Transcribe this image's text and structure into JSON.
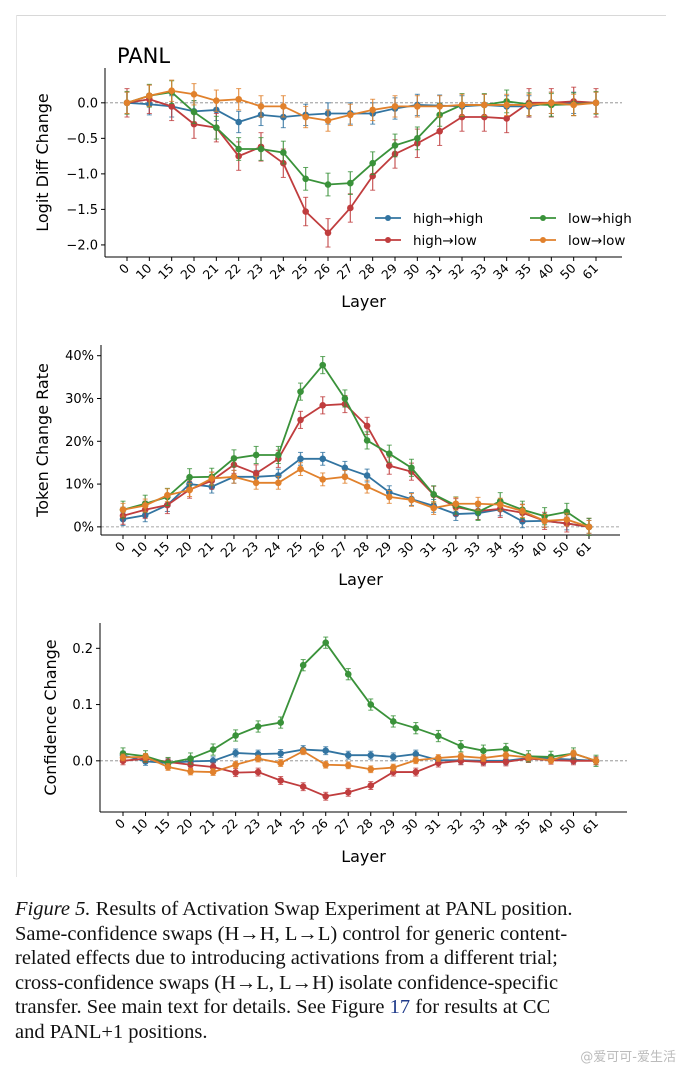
{
  "chart_data": [
    {
      "type": "line",
      "title": "PANL",
      "xlabel": "Layer",
      "ylabel": "Logit Diff Change",
      "categories": [
        "0",
        "10",
        "15",
        "20",
        "21",
        "22",
        "23",
        "24",
        "25",
        "26",
        "27",
        "28",
        "29",
        "30",
        "31",
        "32",
        "33",
        "34",
        "35",
        "40",
        "50",
        "61"
      ],
      "ylim": [
        -2.17,
        0.49
      ],
      "yticks": [
        0.0,
        -0.5,
        -1.0,
        -1.5,
        -2.0
      ],
      "ytick_labels": [
        "0.0",
        "−0.5",
        "−1.0",
        "−1.5",
        "−2.0"
      ],
      "reference_line": 0,
      "grid": false,
      "legend": {
        "placement": "lower-right",
        "columns": 2
      },
      "series": [
        {
          "name": "high→high",
          "color": "#3274a1",
          "err": 0.15,
          "values": [
            0,
            -0.02,
            -0.05,
            -0.12,
            -0.1,
            -0.27,
            -0.17,
            -0.2,
            -0.17,
            -0.15,
            -0.15,
            -0.15,
            -0.08,
            -0.03,
            -0.04,
            -0.05,
            -0.03,
            -0.05,
            -0.05,
            0,
            0,
            0
          ]
        },
        {
          "name": "high→low",
          "color": "#c03d3e",
          "err": 0.2,
          "values": [
            0,
            0.05,
            -0.05,
            -0.3,
            -0.35,
            -0.75,
            -0.62,
            -0.85,
            -1.53,
            -1.83,
            -1.48,
            -1.03,
            -0.72,
            -0.57,
            -0.4,
            -0.2,
            -0.2,
            -0.22,
            0,
            0,
            0.02,
            0
          ]
        },
        {
          "name": "low→high",
          "color": "#3a923a",
          "err": 0.16,
          "values": [
            0,
            0.1,
            0.15,
            -0.13,
            -0.35,
            -0.65,
            -0.65,
            -0.7,
            -1.07,
            -1.15,
            -1.13,
            -0.85,
            -0.6,
            -0.5,
            -0.17,
            -0.03,
            -0.03,
            0.02,
            -0.02,
            -0.03,
            -0.02,
            0
          ]
        },
        {
          "name": "low→low",
          "color": "#e1812c",
          "err": 0.15,
          "values": [
            0,
            0.1,
            0.17,
            0.12,
            0.03,
            0.05,
            -0.05,
            -0.05,
            -0.2,
            -0.25,
            -0.17,
            -0.1,
            -0.05,
            -0.05,
            -0.05,
            -0.03,
            -0.03,
            -0.03,
            -0.03,
            0,
            -0.03,
            0
          ]
        }
      ]
    },
    {
      "type": "line",
      "xlabel": "Layer",
      "ylabel": "Token Change Rate",
      "categories": [
        "0",
        "10",
        "15",
        "20",
        "21",
        "22",
        "23",
        "24",
        "25",
        "26",
        "27",
        "28",
        "29",
        "30",
        "31",
        "32",
        "33",
        "34",
        "35",
        "40",
        "50",
        "61"
      ],
      "ylim": [
        -1.9,
        42.5
      ],
      "yticks": [
        0,
        10,
        20,
        30,
        40
      ],
      "ytick_labels": [
        "0%",
        "10%",
        "20%",
        "30%",
        "40%"
      ],
      "reference_line": 0,
      "grid": false,
      "series": [
        {
          "name": "high→high",
          "color": "#3274a1",
          "err": 1.5,
          "values": [
            1.8,
            2.7,
            5.1,
            10,
            9.4,
            11.7,
            11.7,
            12,
            15.9,
            15.9,
            13.8,
            12,
            8.1,
            6.5,
            4.9,
            3,
            3.2,
            4.1,
            1.3,
            1.4,
            0.8,
            0
          ]
        },
        {
          "name": "high→low",
          "color": "#c03d3e",
          "err": 2,
          "values": [
            2.6,
            4,
            5.1,
            8.7,
            10.8,
            14.5,
            12.5,
            15.9,
            25,
            28.4,
            28.7,
            23.6,
            14.3,
            12.9,
            7.5,
            4.6,
            3.7,
            4.2,
            3.3,
            1.4,
            0.8,
            0
          ]
        },
        {
          "name": "low→high",
          "color": "#3a923a",
          "err": 2,
          "values": [
            4,
            5.4,
            7,
            11.6,
            11.7,
            16,
            16.8,
            16.8,
            31.6,
            37.8,
            30,
            20.2,
            17.1,
            13.8,
            7.6,
            5,
            3.5,
            6,
            4,
            2.5,
            3.5,
            0
          ]
        },
        {
          "name": "low→low",
          "color": "#e1812c",
          "err": 1.5,
          "values": [
            4,
            5,
            7.4,
            8.6,
            11.3,
            11.7,
            10.3,
            10.3,
            13.5,
            11.1,
            11.7,
            9.4,
            7,
            6.3,
            4.4,
            5.4,
            5.4,
            5.2,
            3.7,
            1.4,
            1.7,
            0
          ]
        }
      ]
    },
    {
      "type": "line",
      "xlabel": "Layer",
      "ylabel": "Confidence Change",
      "categories": [
        "0",
        "10",
        "15",
        "20",
        "21",
        "22",
        "23",
        "24",
        "25",
        "26",
        "27",
        "28",
        "29",
        "30",
        "31",
        "32",
        "33",
        "34",
        "35",
        "40",
        "50",
        "61"
      ],
      "ylim": [
        -0.091,
        0.245
      ],
      "yticks": [
        0.0,
        0.1,
        0.2
      ],
      "ytick_labels": [
        "0.0",
        "0.1",
        "0.2"
      ],
      "reference_line": 0,
      "grid": false,
      "series": [
        {
          "name": "high→high",
          "color": "#3274a1",
          "err": 0.007,
          "values": [
            0.01,
            -0.001,
            -0.004,
            -0.001,
            0,
            0.014,
            0.012,
            0.013,
            0.02,
            0.018,
            0.01,
            0.01,
            0.007,
            0.012,
            0.001,
            0.001,
            0,
            0,
            0.005,
            0.004,
            0.002,
            0
          ]
        },
        {
          "name": "high→low",
          "color": "#c03d3e",
          "err": 0.007,
          "values": [
            0,
            0.004,
            -0.002,
            -0.007,
            -0.011,
            -0.021,
            -0.02,
            -0.035,
            -0.046,
            -0.063,
            -0.056,
            -0.044,
            -0.02,
            -0.02,
            -0.004,
            0,
            -0.002,
            -0.002,
            0.004,
            0.001,
            0,
            0
          ]
        },
        {
          "name": "low→high",
          "color": "#3a923a",
          "err": 0.01,
          "values": [
            0.013,
            0.008,
            -0.004,
            0.004,
            0.02,
            0.045,
            0.061,
            0.068,
            0.17,
            0.21,
            0.154,
            0.1,
            0.07,
            0.058,
            0.044,
            0.026,
            0.018,
            0.021,
            0.008,
            0.007,
            0.013,
            0
          ]
        },
        {
          "name": "low→low",
          "color": "#e1812c",
          "err": 0.006,
          "values": [
            0.006,
            0.007,
            -0.011,
            -0.019,
            -0.02,
            -0.007,
            0.004,
            -0.004,
            0.017,
            -0.007,
            -0.008,
            -0.015,
            -0.012,
            0.001,
            0.005,
            0.008,
            0.005,
            0.01,
            0.006,
            0.001,
            0.013,
            0
          ]
        }
      ]
    }
  ],
  "caption": {
    "label": "Figure 5.",
    "line1": " Results of Activation Swap Experiment at PANL position.",
    "line2": "Same-confidence swaps (H→H, L→L) control for generic content-",
    "line3": "related effects due to introducing activations from a different trial;",
    "line4": "cross-confidence swaps (H→L, L→H) isolate confidence-specific",
    "line5a": "transfer. See main text for details. See Figure ",
    "line5_ref": "17",
    "line5b": " for results at CC",
    "line6": "and PANL+1 positions."
  },
  "watermark": "@爱可可-爱生活"
}
